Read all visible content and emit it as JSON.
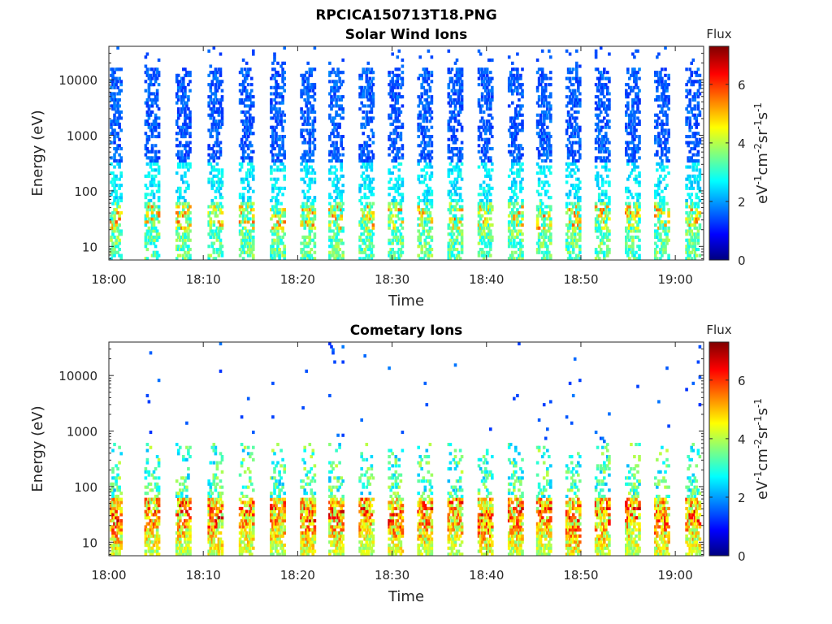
{
  "figure_title": "RPCICA150713T18.PNG",
  "chart_data": [
    {
      "type": "heatmap",
      "title": "Solar Wind Ions",
      "xlabel": "Time",
      "ylabel": "Energy (eV)",
      "x_tick_labels": [
        "18:00",
        "18:10",
        "18:20",
        "18:30",
        "18:40",
        "18:50",
        "19:00"
      ],
      "x_range": [
        "18:00",
        "19:03"
      ],
      "y_tick_labels": [
        "10",
        "100",
        "1000",
        "10000"
      ],
      "y_range": [
        5.7,
        40000
      ],
      "y_scale": "log",
      "colorbar": {
        "title": "Flux",
        "label": "eV^-1 cm^-2 sr^-1 s^-1",
        "ticks": [
          "0",
          "2",
          "4",
          "6"
        ],
        "range": [
          0,
          7.3
        ],
        "colormap": "jet"
      },
      "sweep_period_minutes": 3.2,
      "band_centers": [
        "18:00.5",
        "18:04.5",
        "18:07.8",
        "18:11.2",
        "18:14.5",
        "18:17.8",
        "18:21.0",
        "18:24.0",
        "18:27.2",
        "18:30.3",
        "18:33.4",
        "18:36.6",
        "18:39.8",
        "18:43.0",
        "18:46.0",
        "18:49.1",
        "18:52.2",
        "18:55.4",
        "18:58.5",
        "19:01.8"
      ],
      "description_values": {
        "high_energy_flux": 1.5,
        "low_energy_flux": 3.5,
        "peak_low_energy_flux": 5.5,
        "peak_energy_range_eV": [
          20,
          60
        ]
      }
    },
    {
      "type": "heatmap",
      "title": "Cometary Ions",
      "xlabel": "Time",
      "ylabel": "Energy (eV)",
      "x_tick_labels": [
        "18:00",
        "18:10",
        "18:20",
        "18:30",
        "18:40",
        "18:50",
        "19:00"
      ],
      "x_range": [
        "18:00",
        "19:03"
      ],
      "y_tick_labels": [
        "10",
        "100",
        "1000",
        "10000"
      ],
      "y_range": [
        5.7,
        40000
      ],
      "y_scale": "log",
      "colorbar": {
        "title": "Flux",
        "label": "eV^-1 cm^-2 sr^-1 s^-1",
        "ticks": [
          "0",
          "2",
          "4",
          "6"
        ],
        "range": [
          0,
          7.3
        ],
        "colormap": "jet"
      },
      "sweep_period_minutes": 3.2,
      "band_centers": [
        "18:00.5",
        "18:04.5",
        "18:07.8",
        "18:11.2",
        "18:14.5",
        "18:17.8",
        "18:21.0",
        "18:24.0",
        "18:27.2",
        "18:30.3",
        "18:33.4",
        "18:36.6",
        "18:39.8",
        "18:43.0",
        "18:46.0",
        "18:49.1",
        "18:52.2",
        "18:55.4",
        "18:58.5",
        "19:01.8"
      ],
      "description_values": {
        "peak_flux": 7.0,
        "peak_energy_range_eV": [
          10,
          60
        ],
        "plume_top_eV": 500
      }
    }
  ]
}
